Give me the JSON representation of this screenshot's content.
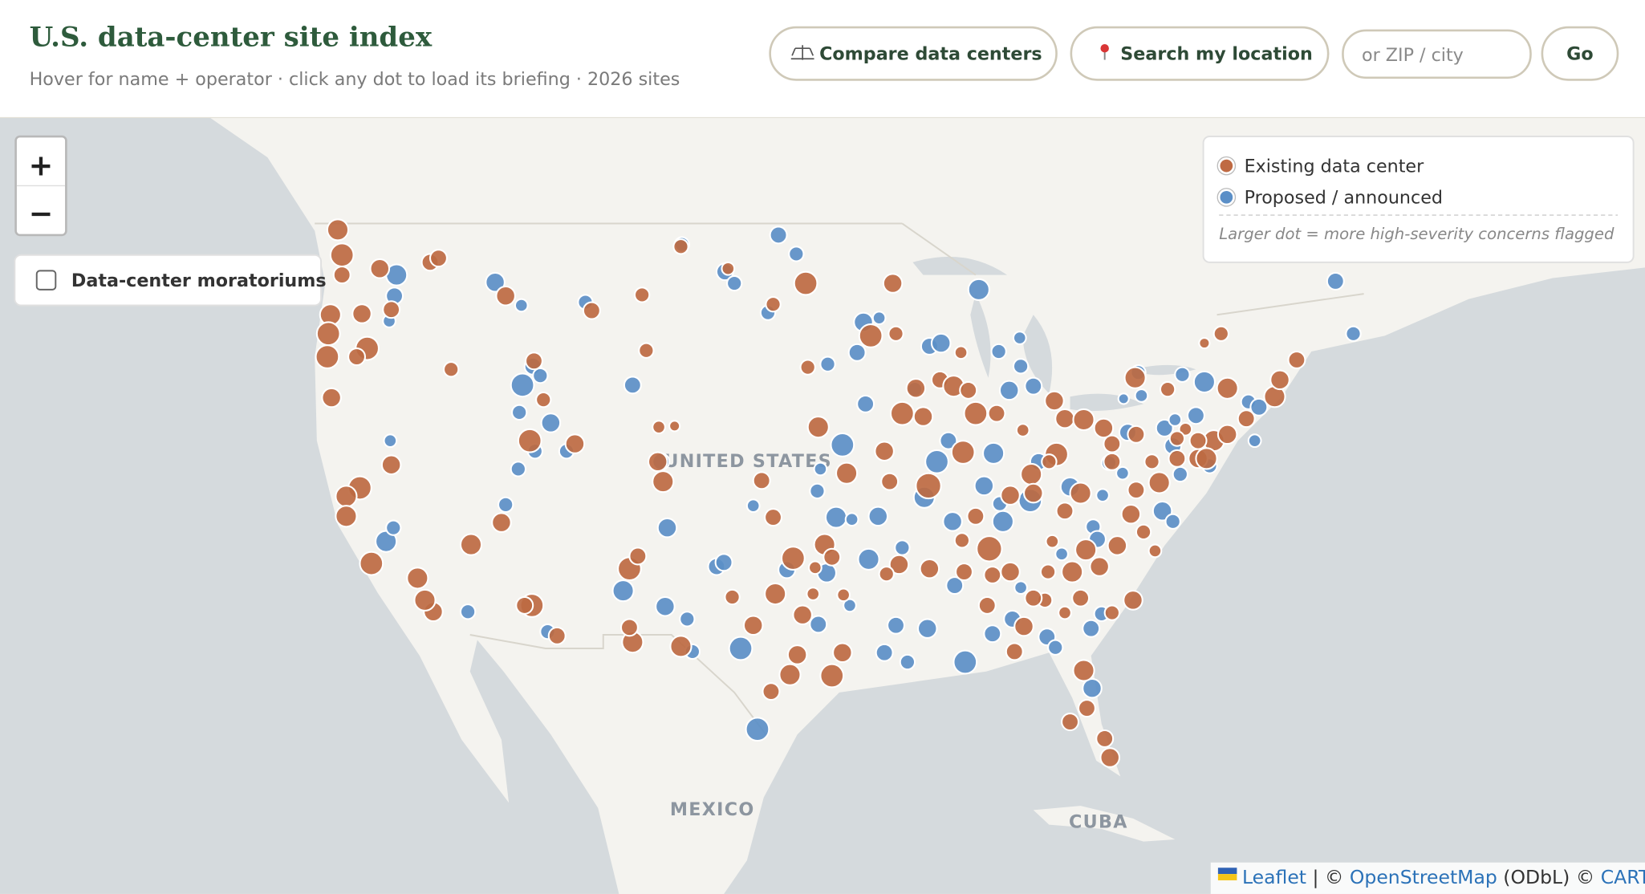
{
  "header": {
    "title": "U.S. data-center site index",
    "subtitle": "Hover for name + operator · click any dot to load its briefing · 2026 sites"
  },
  "toolbar": {
    "compare": "Compare data centers",
    "search": "Search my location",
    "input_placeholder": "or ZIP / city",
    "go": "Go"
  },
  "map": {
    "zoom_in": "+",
    "zoom_out": "−",
    "moratorium_toggle": "Data-center moratoriums",
    "labels": {
      "country": "UNITED STATES",
      "mexico": "MEXICO",
      "cuba": "CUBA"
    },
    "legend": {
      "existing": "Existing data center",
      "proposed": "Proposed / announced",
      "note": "Larger dot = more high-severity concerns flagged"
    },
    "attribution": {
      "leaflet": "Leaflet",
      "sep1": " | © ",
      "osm": "OpenStreetMap",
      "sep2": " (ODbL) © ",
      "carto": "CARTO"
    }
  }
}
